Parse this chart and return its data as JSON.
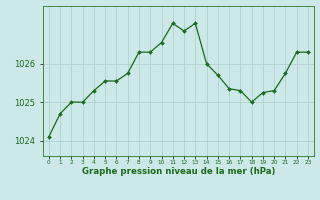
{
  "x": [
    0,
    1,
    2,
    3,
    4,
    5,
    6,
    7,
    8,
    9,
    10,
    11,
    12,
    13,
    14,
    15,
    16,
    17,
    18,
    19,
    20,
    21,
    22,
    23
  ],
  "y": [
    1024.1,
    1024.7,
    1025.0,
    1025.0,
    1025.3,
    1025.55,
    1025.55,
    1025.75,
    1026.3,
    1026.3,
    1026.55,
    1027.05,
    1026.85,
    1027.05,
    1026.0,
    1025.7,
    1025.35,
    1025.3,
    1025.0,
    1025.25,
    1025.3,
    1025.75,
    1026.3,
    1026.3
  ],
  "line_color": "#1a6b1a",
  "marker": "D",
  "marker_size": 2.0,
  "background_color": "#cce8e8",
  "grid_color": "#aacccc",
  "xlabel": "Graphe pression niveau de la mer (hPa)",
  "xlabel_color": "#1a6b1a",
  "tick_label_color": "#1a6b1a",
  "ylim": [
    1023.6,
    1027.5
  ],
  "yticks": [
    1024,
    1025,
    1026
  ],
  "xlim": [
    -0.5,
    23.5
  ],
  "spine_color": "#2d7a2d",
  "xtick_fontsize": 4.2,
  "ytick_fontsize": 6.0,
  "xlabel_fontsize": 6.2
}
